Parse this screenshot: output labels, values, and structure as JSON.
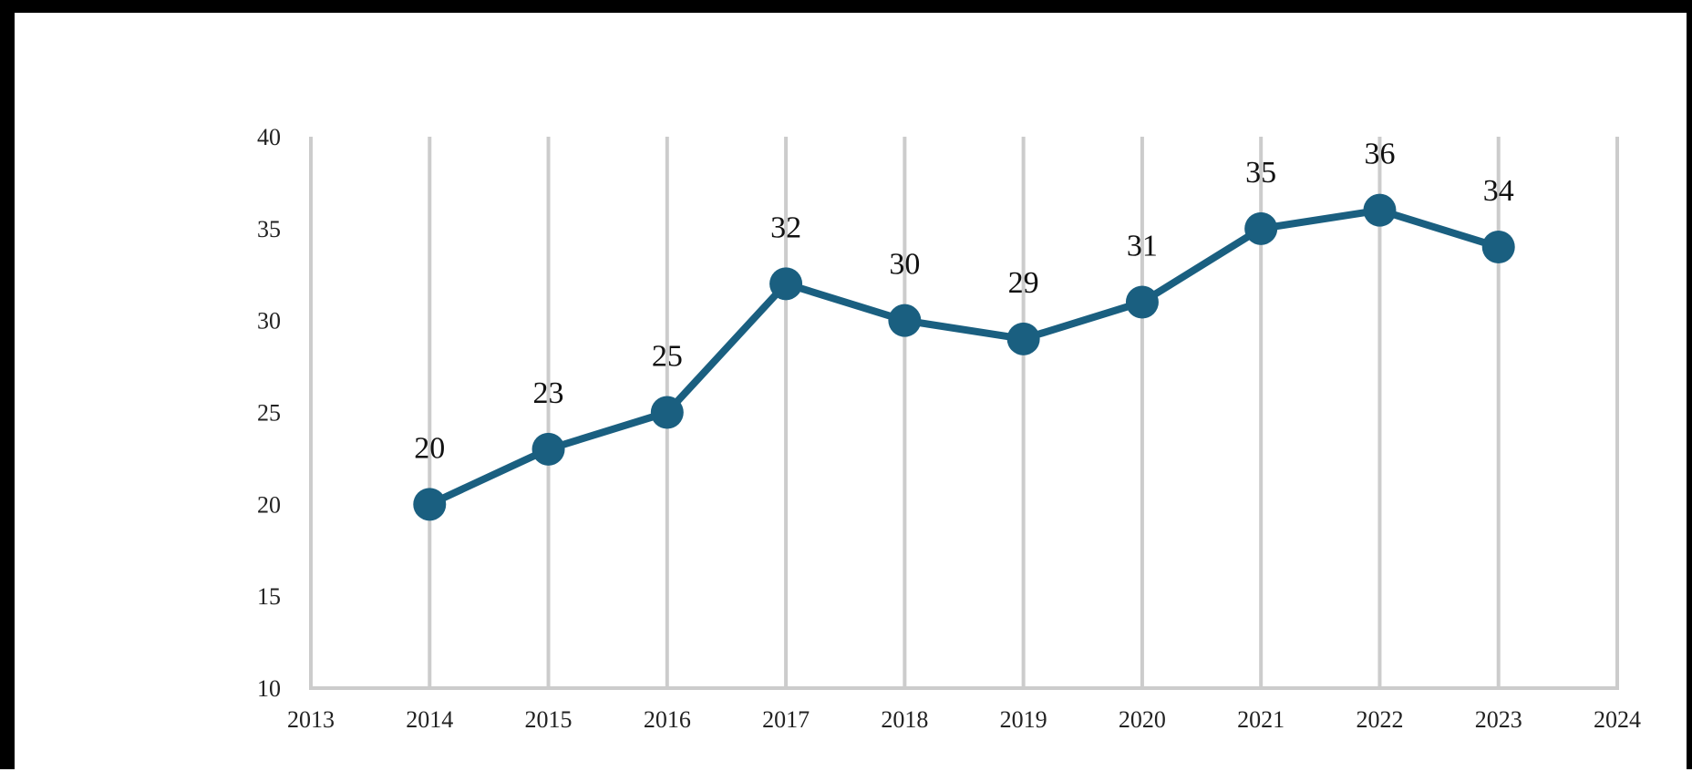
{
  "chart_data": {
    "type": "line",
    "title": "",
    "xlabel": "",
    "ylabel": "",
    "x": [
      2014,
      2015,
      2016,
      2017,
      2018,
      2019,
      2020,
      2021,
      2022,
      2023
    ],
    "series": [
      {
        "values": [
          20,
          23,
          25,
          32,
          30,
          29,
          31,
          35,
          36,
          34
        ],
        "color": "#1a5f80"
      }
    ],
    "xlim": [
      2013,
      2024
    ],
    "ylim": [
      10,
      40
    ],
    "x_ticks": [
      "2013",
      "2014",
      "2015",
      "2016",
      "2017",
      "2018",
      "2019",
      "2020",
      "2021",
      "2022",
      "2023",
      "2024"
    ],
    "y_ticks": [
      "10",
      "15",
      "20",
      "25",
      "30",
      "35",
      "40"
    ],
    "data_labels": [
      "20",
      "23",
      "25",
      "32",
      "30",
      "29",
      "31",
      "35",
      "36",
      "34"
    ],
    "grid": "vertical",
    "grid_color": "#cccccc",
    "legend": "none",
    "markers": "circle"
  }
}
